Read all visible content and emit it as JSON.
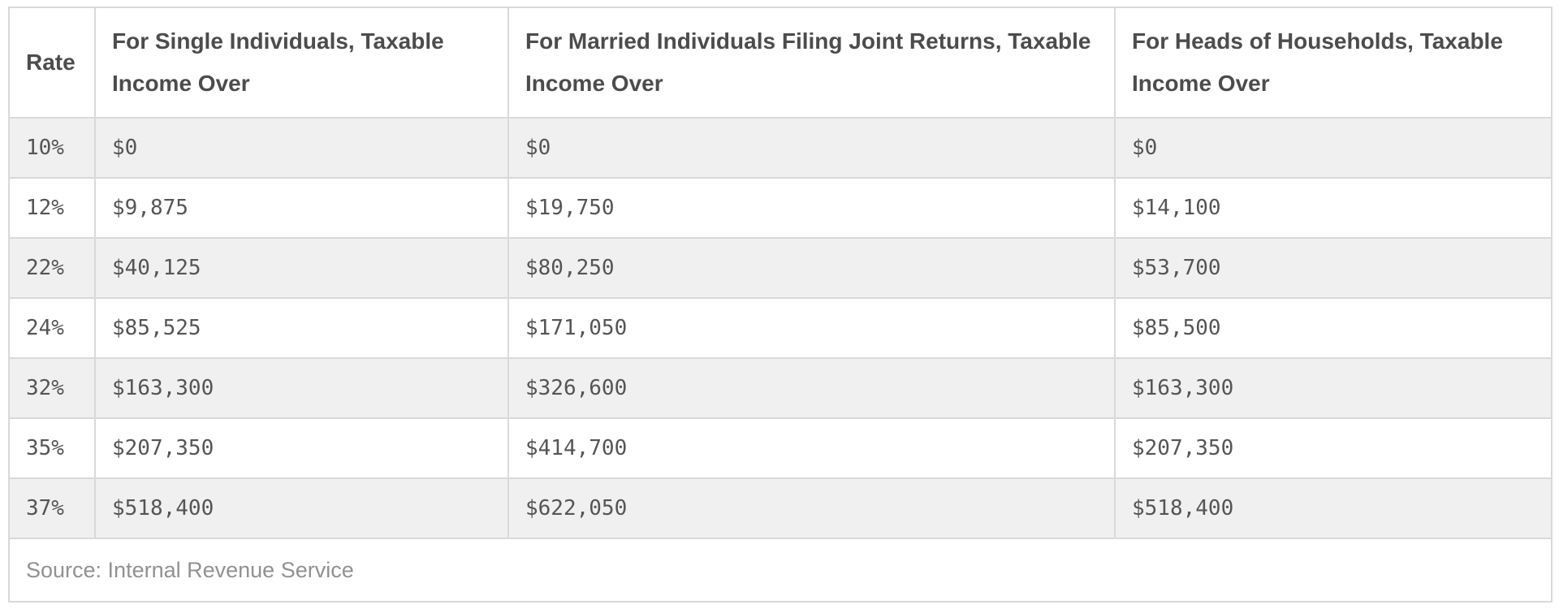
{
  "table": {
    "columns": [
      "Rate",
      "For Single Individuals, Taxable Income Over",
      "For Married Individuals Filing Joint Returns, Taxable Income Over",
      "For Heads of Households, Taxable Income Over"
    ],
    "rows": [
      {
        "rate": "10%",
        "single": "$0",
        "married": "$0",
        "hoh": "$0"
      },
      {
        "rate": "12%",
        "single": "$9,875",
        "married": "$19,750",
        "hoh": "$14,100"
      },
      {
        "rate": "22%",
        "single": "$40,125",
        "married": "$80,250",
        "hoh": "$53,700"
      },
      {
        "rate": "24%",
        "single": "$85,525",
        "married": "$171,050",
        "hoh": "$85,500"
      },
      {
        "rate": "32%",
        "single": "$163,300",
        "married": "$326,600",
        "hoh": "$163,300"
      },
      {
        "rate": "35%",
        "single": "$207,350",
        "married": "$414,700",
        "hoh": "$207,350"
      },
      {
        "rate": "37%",
        "single": "$518,400",
        "married": "$622,050",
        "hoh": "$518,400"
      }
    ],
    "source": "Source: Internal Revenue Service"
  },
  "colors": {
    "row_stripe": "#f0f0f0",
    "row_white": "#ffffff",
    "border": "#d9d9d9",
    "header_text": "#4c4c4c",
    "data_text": "#555555",
    "source_text": "#919191"
  },
  "chart_data": {
    "type": "table",
    "title": "",
    "columns": [
      "Rate",
      "For Single Individuals, Taxable Income Over",
      "For Married Individuals Filing Joint Returns, Taxable Income Over",
      "For Heads of Households, Taxable Income Over"
    ],
    "rows": [
      [
        "10%",
        "$0",
        "$0",
        "$0"
      ],
      [
        "12%",
        "$9,875",
        "$19,750",
        "$14,100"
      ],
      [
        "22%",
        "$40,125",
        "$80,250",
        "$53,700"
      ],
      [
        "24%",
        "$85,525",
        "$171,050",
        "$85,500"
      ],
      [
        "32%",
        "$163,300",
        "$326,600",
        "$163,300"
      ],
      [
        "35%",
        "$207,350",
        "$414,700",
        "$207,350"
      ],
      [
        "37%",
        "$518,400",
        "$622,050",
        "$518,400"
      ]
    ],
    "source_note": "Source: Internal Revenue Service",
    "layout_hints": {
      "striped_rows": "odd data rows shaded #f0f0f0",
      "header_font": "bold sans",
      "data_font": "monospace"
    }
  }
}
